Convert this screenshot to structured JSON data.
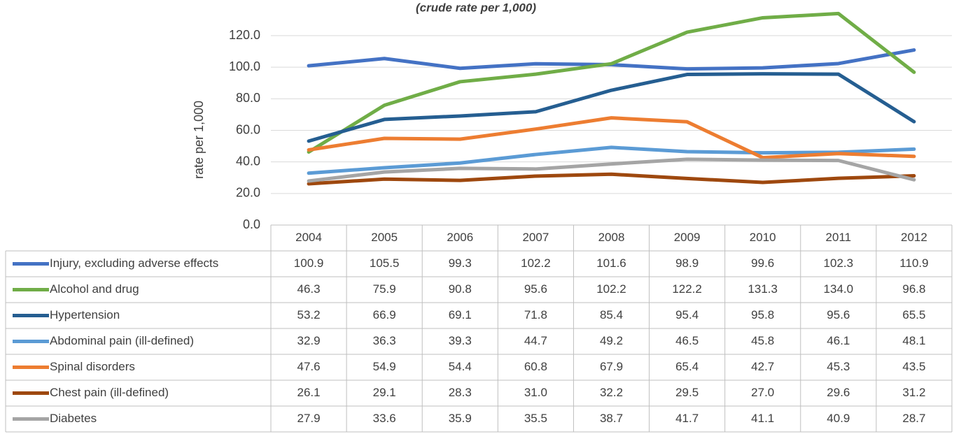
{
  "chart_data": {
    "type": "line",
    "subtitle": "(crude rate per 1,000)",
    "y_label": "rate per 1,000",
    "categories": [
      "2004",
      "2005",
      "2006",
      "2007",
      "2008",
      "2009",
      "2010",
      "2011",
      "2012"
    ],
    "ylim": [
      0,
      120
    ],
    "yticks": [
      {
        "value": 0,
        "label": "0.0"
      },
      {
        "value": 20,
        "label": "20.0"
      },
      {
        "value": 40,
        "label": "40.0"
      },
      {
        "value": 60,
        "label": "60.0"
      },
      {
        "value": 80,
        "label": "80.0"
      },
      {
        "value": 100,
        "label": "100.0"
      },
      {
        "value": 120,
        "label": "120.0"
      }
    ],
    "grid": true,
    "series": [
      {
        "name": "Injury, excluding adverse effects",
        "color": "#4472c4",
        "values": [
          100.9,
          105.5,
          99.3,
          102.2,
          101.6,
          98.9,
          99.6,
          102.3,
          110.9
        ],
        "value_labels": [
          "100.9",
          "105.5",
          "99.3",
          "102.2",
          "101.6",
          "98.9",
          "99.6",
          "102.3",
          "110.9"
        ]
      },
      {
        "name": "Alcohol and drug",
        "color": "#70ad47",
        "values": [
          46.3,
          75.9,
          90.8,
          95.6,
          102.2,
          122.2,
          131.3,
          134,
          96.8
        ],
        "value_labels": [
          "46.3",
          "75.9",
          "90.8",
          "95.6",
          "102.2",
          "122.2",
          "131.3",
          "134.0",
          "96.8"
        ]
      },
      {
        "name": "Hypertension",
        "color": "#255e91",
        "values": [
          53.2,
          66.9,
          69.1,
          71.8,
          85.4,
          95.4,
          95.8,
          95.6,
          65.5
        ],
        "value_labels": [
          "53.2",
          "66.9",
          "69.1",
          "71.8",
          "85.4",
          "95.4",
          "95.8",
          "95.6",
          "65.5"
        ]
      },
      {
        "name": "Abdominal pain (ill-defined)",
        "color": "#5b9bd5",
        "values": [
          32.9,
          36.3,
          39.3,
          44.7,
          49.2,
          46.5,
          45.8,
          46.1,
          48.1
        ],
        "value_labels": [
          "32.9",
          "36.3",
          "39.3",
          "44.7",
          "49.2",
          "46.5",
          "45.8",
          "46.1",
          "48.1"
        ]
      },
      {
        "name": "Spinal disorders",
        "color": "#ed7d31",
        "values": [
          47.6,
          54.9,
          54.4,
          60.8,
          67.9,
          65.4,
          42.7,
          45.3,
          43.5
        ],
        "value_labels": [
          "47.6",
          "54.9",
          "54.4",
          "60.8",
          "67.9",
          "65.4",
          "42.7",
          "45.3",
          "43.5"
        ]
      },
      {
        "name": "Chest pain (ill-defined)",
        "color": "#9e480e",
        "values": [
          26.1,
          29.1,
          28.3,
          31,
          32.2,
          29.5,
          27,
          29.6,
          31.2
        ],
        "value_labels": [
          "26.1",
          "29.1",
          "28.3",
          "31.0",
          "32.2",
          "29.5",
          "27.0",
          "29.6",
          "31.2"
        ]
      },
      {
        "name": "Diabetes",
        "color": "#a5a5a5",
        "values": [
          27.9,
          33.6,
          35.9,
          35.5,
          38.7,
          41.7,
          41.1,
          40.9,
          28.7
        ],
        "value_labels": [
          "27.9",
          "33.6",
          "35.9",
          "35.5",
          "38.7",
          "41.7",
          "41.1",
          "40.9",
          "28.7"
        ]
      }
    ]
  }
}
